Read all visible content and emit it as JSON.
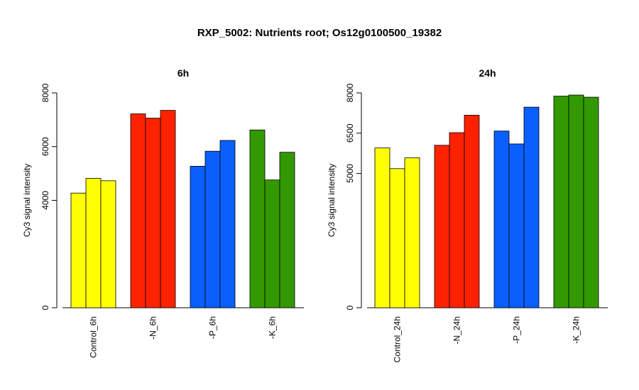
{
  "figure": {
    "title": "RXP_5002: Nutrients root; Os12g0100500_19382"
  },
  "chart_data": [
    {
      "type": "bar",
      "title": "6h",
      "ylabel": "Cy3 signal intensity",
      "xlabel": "",
      "ylim": [
        0,
        8000
      ],
      "yticks": [
        0,
        4000,
        6000,
        8000
      ],
      "groups": [
        {
          "label": "Control_6h",
          "color": "#ffff00",
          "values": [
            4270,
            4820,
            4730
          ]
        },
        {
          "label": "-N_6h",
          "color": "#ff2200",
          "values": [
            7220,
            7060,
            7350
          ]
        },
        {
          "label": "-P_6h",
          "color": "#0a60ff",
          "values": [
            5270,
            5830,
            6230
          ]
        },
        {
          "label": "-K_6h",
          "color": "#339900",
          "values": [
            6620,
            4760,
            5790
          ]
        }
      ]
    },
    {
      "type": "bar",
      "title": "24h",
      "ylabel": "Cy3 signal intensity",
      "xlabel": "",
      "ylim": [
        0,
        8000
      ],
      "yticks": [
        0,
        5000,
        6500,
        8000
      ],
      "groups": [
        {
          "label": "Control_24h",
          "color": "#ffff00",
          "values": [
            5950,
            5180,
            5580
          ]
        },
        {
          "label": "-N_24h",
          "color": "#ff2200",
          "values": [
            6050,
            6520,
            7170
          ]
        },
        {
          "label": "-P_24h",
          "color": "#0a60ff",
          "values": [
            6580,
            6100,
            7470
          ]
        },
        {
          "label": "-K_24h",
          "color": "#339900",
          "values": [
            7880,
            7920,
            7840
          ]
        }
      ]
    }
  ]
}
